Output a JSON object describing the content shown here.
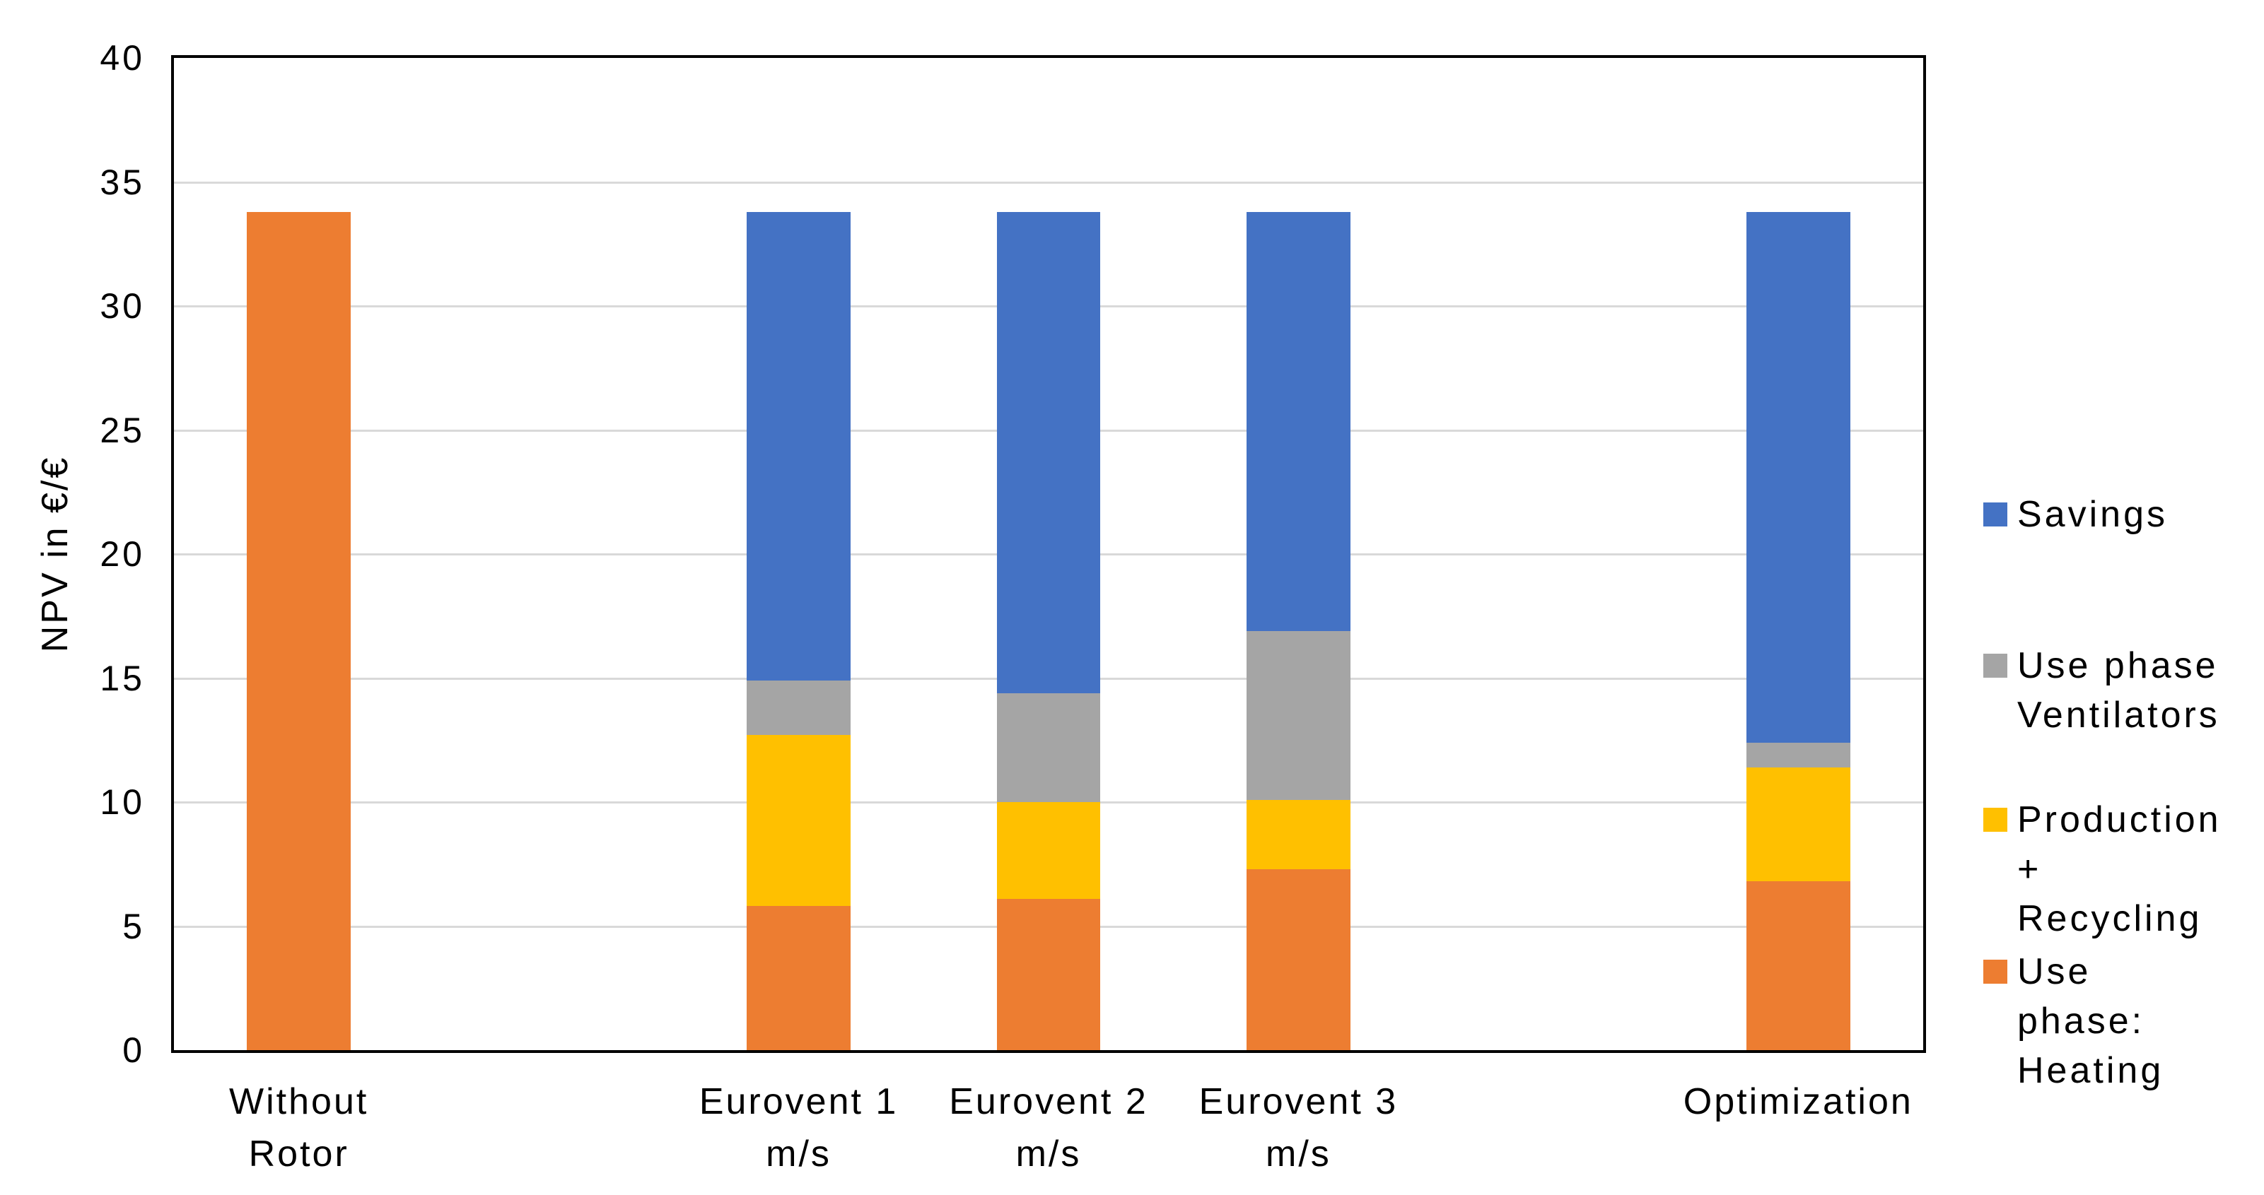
{
  "chart_data": {
    "type": "bar",
    "stacked": true,
    "title": "",
    "xlabel": "",
    "ylabel": "NPV in €/€",
    "ylim": [
      0,
      40
    ],
    "yticks": [
      0,
      5,
      10,
      15,
      20,
      25,
      30,
      35,
      40
    ],
    "grid": "horizontal gridlines every 5, plot area boxed with black border",
    "legend_position": "right",
    "total_slots": 7,
    "bar_width_frac": 0.415,
    "categories": [
      {
        "slot": 0,
        "label": "Without Rotor",
        "lines": [
          "Without",
          "Rotor"
        ]
      },
      {
        "slot": 2,
        "label": "Eurovent 1 m/s",
        "lines": [
          "Eurovent 1",
          "m/s"
        ]
      },
      {
        "slot": 3,
        "label": "Eurovent 2 m/s",
        "lines": [
          "Eurovent 2",
          "m/s"
        ]
      },
      {
        "slot": 4,
        "label": "Eurovent 3 m/s",
        "lines": [
          "Eurovent 3",
          "m/s"
        ]
      },
      {
        "slot": 6,
        "label": "Optimization",
        "lines": [
          "Optimization"
        ]
      }
    ],
    "series": [
      {
        "name": "Use phase: Heating",
        "color": "#ED7D31",
        "values": [
          33.8,
          5.8,
          6.1,
          7.3,
          6.8
        ]
      },
      {
        "name": "Production + Recycling",
        "color": "#FFC000",
        "values": [
          0,
          6.9,
          3.9,
          2.8,
          4.6
        ]
      },
      {
        "name": "Use phase Ventilators",
        "color": "#A5A5A5",
        "values": [
          0,
          2.2,
          4.4,
          6.8,
          1.0
        ]
      },
      {
        "name": "Savings",
        "color": "#4472C4",
        "values": [
          0,
          18.9,
          19.4,
          16.9,
          21.4
        ]
      }
    ],
    "bar_totals": [
      33.8,
      33.8,
      33.8,
      33.8,
      33.8
    ],
    "legend": [
      {
        "series": "Savings",
        "color": "#4472C4",
        "lines": [
          "Savings"
        ]
      },
      {
        "series": "Use phase Ventilators",
        "color": "#A5A5A5",
        "lines": [
          "Use phase",
          "Ventilators"
        ]
      },
      {
        "series": "Production + Recycling",
        "color": "#FFC000",
        "lines": [
          "Production",
          "+ Recycling"
        ]
      },
      {
        "series": "Use phase: Heating",
        "color": "#ED7D31",
        "lines": [
          "Use phase:",
          "Heating"
        ]
      }
    ],
    "colors": {
      "axis_border": "#000000",
      "gridline": "#D9D9D9",
      "text": "#000000",
      "background": "#FFFFFF"
    }
  }
}
